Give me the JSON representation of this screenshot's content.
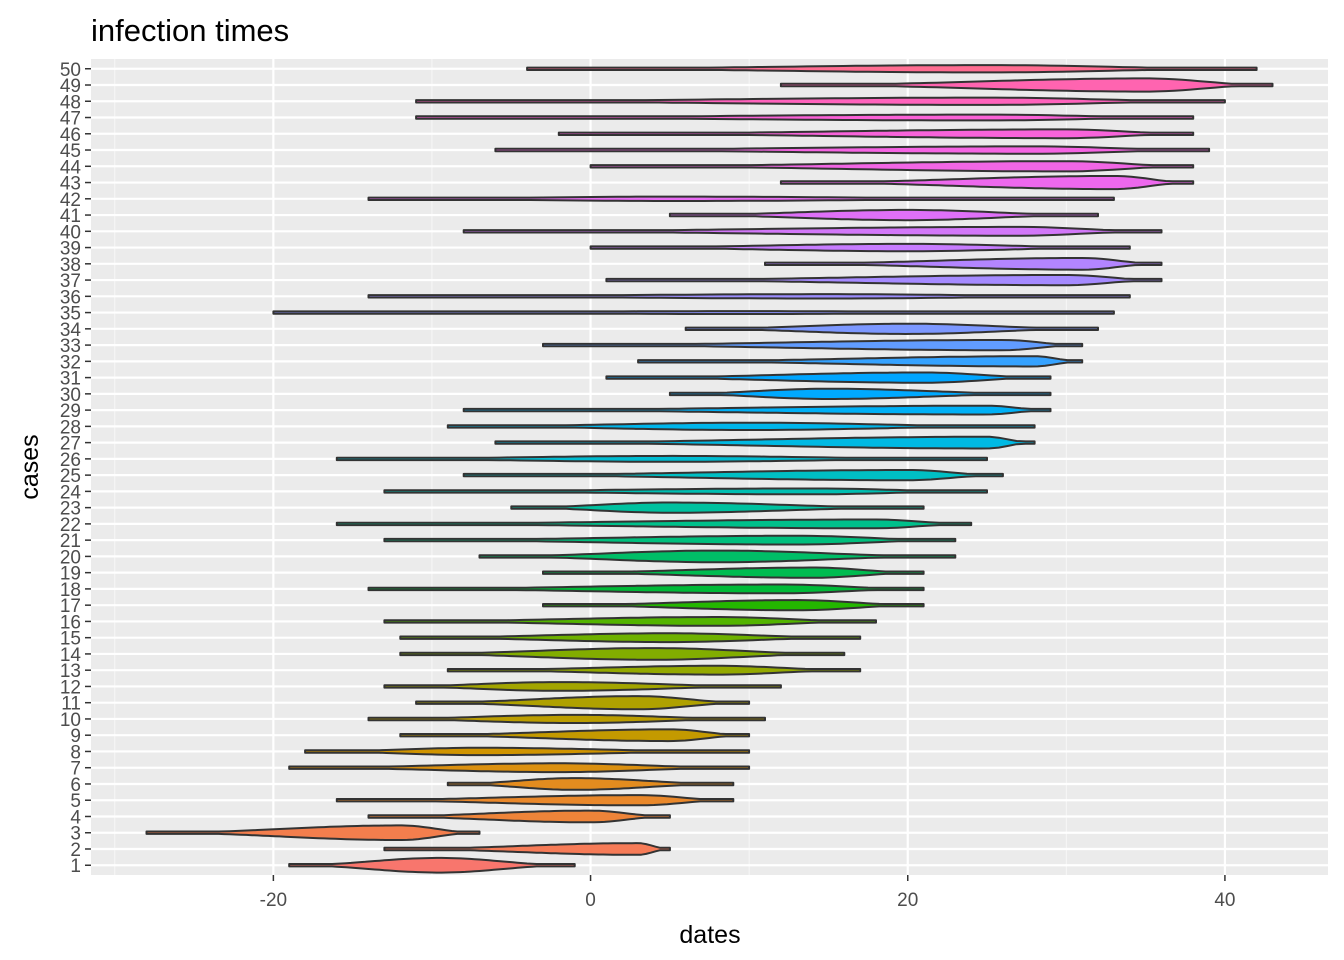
{
  "chart_data": {
    "type": "violin",
    "title": "infection times",
    "xlabel": "dates",
    "ylabel": "cases",
    "xlim": [
      -31.5,
      46.5
    ],
    "x_ticks": [
      -20,
      0,
      20,
      40
    ],
    "x_tick_labels": [
      "-20",
      "0",
      "20",
      "40"
    ],
    "grid": true,
    "legend": "none",
    "categories": [
      "1",
      "2",
      "3",
      "4",
      "5",
      "6",
      "7",
      "8",
      "9",
      "10",
      "11",
      "12",
      "13",
      "14",
      "15",
      "16",
      "17",
      "18",
      "19",
      "20",
      "21",
      "22",
      "23",
      "24",
      "25",
      "26",
      "27",
      "28",
      "29",
      "30",
      "31",
      "32",
      "33",
      "34",
      "35",
      "36",
      "37",
      "38",
      "39",
      "40",
      "41",
      "42",
      "43",
      "44",
      "45",
      "46",
      "47",
      "48",
      "49",
      "50"
    ],
    "series": [
      {
        "category": "1",
        "min": -19,
        "max": -1,
        "mode": -9.5,
        "max_width": 0.5,
        "color": "#F8766D"
      },
      {
        "category": "2",
        "min": -13,
        "max": 5,
        "mode": 3,
        "max_width": 0.4,
        "color": "#F67B57"
      },
      {
        "category": "3",
        "min": -28,
        "max": -7,
        "mode": -12,
        "max_width": 0.5,
        "color": "#F37E4D"
      },
      {
        "category": "4",
        "min": -14,
        "max": 5,
        "mode": 0,
        "max_width": 0.4,
        "color": "#EE8439"
      },
      {
        "category": "5",
        "min": -16,
        "max": 9,
        "mode": 3,
        "max_width": 0.35,
        "color": "#E9882B"
      },
      {
        "category": "6",
        "min": -9,
        "max": 9,
        "mode": -1,
        "max_width": 0.4,
        "color": "#E38C1F"
      },
      {
        "category": "7",
        "min": -19,
        "max": 10,
        "mode": -2,
        "max_width": 0.3,
        "color": "#DB9010"
      },
      {
        "category": "8",
        "min": -18,
        "max": 10,
        "mode": -7,
        "max_width": 0.25,
        "color": "#D09400"
      },
      {
        "category": "9",
        "min": -12,
        "max": 10,
        "mode": 5,
        "max_width": 0.4,
        "color": "#C49A00"
      },
      {
        "category": "10",
        "min": -14,
        "max": 11,
        "mode": -1,
        "max_width": 0.28,
        "color": "#BB9D00"
      },
      {
        "category": "11",
        "min": -11,
        "max": 10,
        "mode": 3,
        "max_width": 0.45,
        "color": "#AFA100"
      },
      {
        "category": "12",
        "min": -13,
        "max": 12,
        "mode": -2,
        "max_width": 0.3,
        "color": "#A3A500"
      },
      {
        "category": "13",
        "min": -9,
        "max": 17,
        "mode": 8,
        "max_width": 0.3,
        "color": "#94A900"
      },
      {
        "category": "14",
        "min": -12,
        "max": 16,
        "mode": 4,
        "max_width": 0.4,
        "color": "#82AD00"
      },
      {
        "category": "15",
        "min": -12,
        "max": 17,
        "mode": 5,
        "max_width": 0.3,
        "color": "#6EB100"
      },
      {
        "category": "16",
        "min": -13,
        "max": 18,
        "mode": 8,
        "max_width": 0.3,
        "color": "#53B400"
      },
      {
        "category": "17",
        "min": -3,
        "max": 21,
        "mode": 13,
        "max_width": 0.35,
        "color": "#24B700"
      },
      {
        "category": "18",
        "min": -14,
        "max": 21,
        "mode": 12,
        "max_width": 0.3,
        "color": "#00BA38"
      },
      {
        "category": "19",
        "min": -3,
        "max": 21,
        "mode": 14,
        "max_width": 0.35,
        "color": "#00BC50"
      },
      {
        "category": "20",
        "min": -7,
        "max": 23,
        "mode": 8,
        "max_width": 0.4,
        "color": "#00BE67"
      },
      {
        "category": "21",
        "min": -13,
        "max": 23,
        "mode": 13,
        "max_width": 0.3,
        "color": "#00BF7D"
      },
      {
        "category": "22",
        "min": -16,
        "max": 24,
        "mode": 18,
        "max_width": 0.3,
        "color": "#00C08B"
      },
      {
        "category": "23",
        "min": -5,
        "max": 21,
        "mode": 5,
        "max_width": 0.35,
        "color": "#00C19F"
      },
      {
        "category": "24",
        "min": -13,
        "max": 25,
        "mode": 14,
        "max_width": 0.2,
        "color": "#00BFB2"
      },
      {
        "category": "25",
        "min": -8,
        "max": 26,
        "mode": 20,
        "max_width": 0.35,
        "color": "#00BFC4"
      },
      {
        "category": "26",
        "min": -16,
        "max": 25,
        "mode": 5,
        "max_width": 0.2,
        "color": "#00BCD1"
      },
      {
        "category": "27",
        "min": -6,
        "max": 28,
        "mode": 25,
        "max_width": 0.4,
        "color": "#00B9E3"
      },
      {
        "category": "28",
        "min": -9,
        "max": 28,
        "mode": 10,
        "max_width": 0.25,
        "color": "#00B6EB"
      },
      {
        "category": "29",
        "min": -8,
        "max": 29,
        "mode": 25,
        "max_width": 0.3,
        "color": "#00B0F6"
      },
      {
        "category": "30",
        "min": 5,
        "max": 29,
        "mode": 15,
        "max_width": 0.35,
        "color": "#00A9FF"
      },
      {
        "category": "31",
        "min": 1,
        "max": 29,
        "mode": 21,
        "max_width": 0.35,
        "color": "#00A5FF"
      },
      {
        "category": "32",
        "min": 3,
        "max": 31,
        "mode": 28,
        "max_width": 0.35,
        "color": "#35A2FF"
      },
      {
        "category": "33",
        "min": -3,
        "max": 31,
        "mode": 26,
        "max_width": 0.35,
        "color": "#619CFF"
      },
      {
        "category": "34",
        "min": 6,
        "max": 32,
        "mode": 20,
        "max_width": 0.35,
        "color": "#7C98FF"
      },
      {
        "category": "35",
        "min": -20,
        "max": 33,
        "mode": 10,
        "max_width": 0.1,
        "color": "#8B93FF"
      },
      {
        "category": "36",
        "min": -14,
        "max": 34,
        "mode": 15,
        "max_width": 0.15,
        "color": "#9C8DFF"
      },
      {
        "category": "37",
        "min": 1,
        "max": 36,
        "mode": 30,
        "max_width": 0.35,
        "color": "#A58AFF"
      },
      {
        "category": "38",
        "min": 11,
        "max": 36,
        "mode": 31,
        "max_width": 0.4,
        "color": "#B385FF"
      },
      {
        "category": "39",
        "min": 0,
        "max": 34,
        "mode": 20,
        "max_width": 0.25,
        "color": "#C77CFF"
      },
      {
        "category": "40",
        "min": -8,
        "max": 36,
        "mode": 27,
        "max_width": 0.3,
        "color": "#D277F8"
      },
      {
        "category": "41",
        "min": 5,
        "max": 32,
        "mode": 20,
        "max_width": 0.35,
        "color": "#DF70F8"
      },
      {
        "category": "42",
        "min": -14,
        "max": 33,
        "mode": 5,
        "max_width": 0.15,
        "color": "#E86BF3"
      },
      {
        "category": "43",
        "min": 12,
        "max": 38,
        "mode": 33,
        "max_width": 0.45,
        "color": "#ED68ED"
      },
      {
        "category": "44",
        "min": 0,
        "max": 38,
        "mode": 30,
        "max_width": 0.35,
        "color": "#F266E5"
      },
      {
        "category": "45",
        "min": -6,
        "max": 39,
        "mode": 28,
        "max_width": 0.25,
        "color": "#F564E3"
      },
      {
        "category": "46",
        "min": -2,
        "max": 38,
        "mode": 30,
        "max_width": 0.3,
        "color": "#F863DA"
      },
      {
        "category": "47",
        "min": -11,
        "max": 38,
        "mode": 25,
        "max_width": 0.2,
        "color": "#FB61D7"
      },
      {
        "category": "48",
        "min": -11,
        "max": 40,
        "mode": 25,
        "max_width": 0.25,
        "color": "#FF62BC"
      },
      {
        "category": "49",
        "min": 12,
        "max": 43,
        "mode": 35,
        "max_width": 0.45,
        "color": "#FF64B0"
      },
      {
        "category": "50",
        "min": -4,
        "max": 42,
        "mode": 25,
        "max_width": 0.25,
        "color": "#FF6C91"
      }
    ]
  }
}
